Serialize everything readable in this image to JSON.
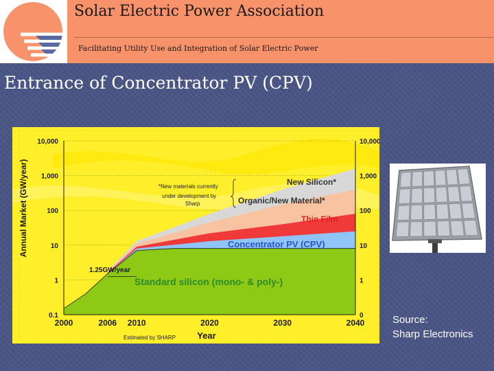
{
  "header": {
    "org_name": "Solar Electric Power Association",
    "tagline": "Facilitating Utility Use and Integration of Solar Electric Power"
  },
  "slide": {
    "title": "Entrance of Concentrator PV (CPV)",
    "source_line1": "Source:",
    "source_line2": "Sharp Electronics"
  },
  "colors": {
    "header_bg": "#f7926b",
    "slide_bg": "#4b5585",
    "chart_bg": "#ffef2a",
    "standard_silicon": "#8dc915",
    "cpv": "#8fc4f7",
    "thin_film": "#f03a3a",
    "organic": "#f7c3a0",
    "new_silicon": "#d8d8d8"
  },
  "chart_data": {
    "type": "area",
    "xlabel": "Year",
    "ylabel": "Annual Market (GW/year)",
    "scale_y": "log",
    "x_ticks": [
      "2000",
      "2006",
      "2010",
      "2020",
      "2030",
      "2040"
    ],
    "x_range": [
      2000,
      2040
    ],
    "y_ticks_left": [
      "10,000",
      "1,000",
      "100",
      "10",
      "1",
      "0.1"
    ],
    "y_ticks_right": [
      "10,000",
      "1,000",
      "100",
      "10",
      "1",
      "0"
    ],
    "y_range": [
      0.1,
      10000
    ],
    "stack": [
      {
        "name": "Standard silicon (mono- & poly-)",
        "points": [
          [
            2000,
            0.15
          ],
          [
            2003,
            0.4
          ],
          [
            2006,
            1.5
          ],
          [
            2010,
            7
          ],
          [
            2015,
            8
          ],
          [
            2020,
            8
          ],
          [
            2030,
            8
          ],
          [
            2040,
            8
          ]
        ]
      },
      {
        "name": "Concentrator PV (CPV)",
        "points": [
          [
            2006,
            1.5
          ],
          [
            2010,
            8
          ],
          [
            2020,
            13
          ],
          [
            2030,
            18
          ],
          [
            2040,
            25
          ]
        ]
      },
      {
        "name": "Thin Film",
        "points": [
          [
            2006,
            1.6
          ],
          [
            2010,
            9
          ],
          [
            2020,
            22
          ],
          [
            2030,
            40
          ],
          [
            2040,
            80
          ]
        ]
      },
      {
        "name": "Organic/New Material*",
        "points": [
          [
            2006,
            1.7
          ],
          [
            2010,
            11
          ],
          [
            2020,
            45
          ],
          [
            2030,
            150
          ],
          [
            2040,
            400
          ]
        ]
      },
      {
        "name": "New Silicon*",
        "points": [
          [
            2006,
            1.8
          ],
          [
            2010,
            13
          ],
          [
            2020,
            80
          ],
          [
            2030,
            400
          ],
          [
            2040,
            1600
          ]
        ]
      }
    ],
    "annotations": {
      "baseline_label": "1.25GW/year",
      "footnote_1": "*New materials currently",
      "footnote_2": "under development by",
      "footnote_3": "Sharp",
      "estimated": "Estimated by SHARP"
    }
  }
}
